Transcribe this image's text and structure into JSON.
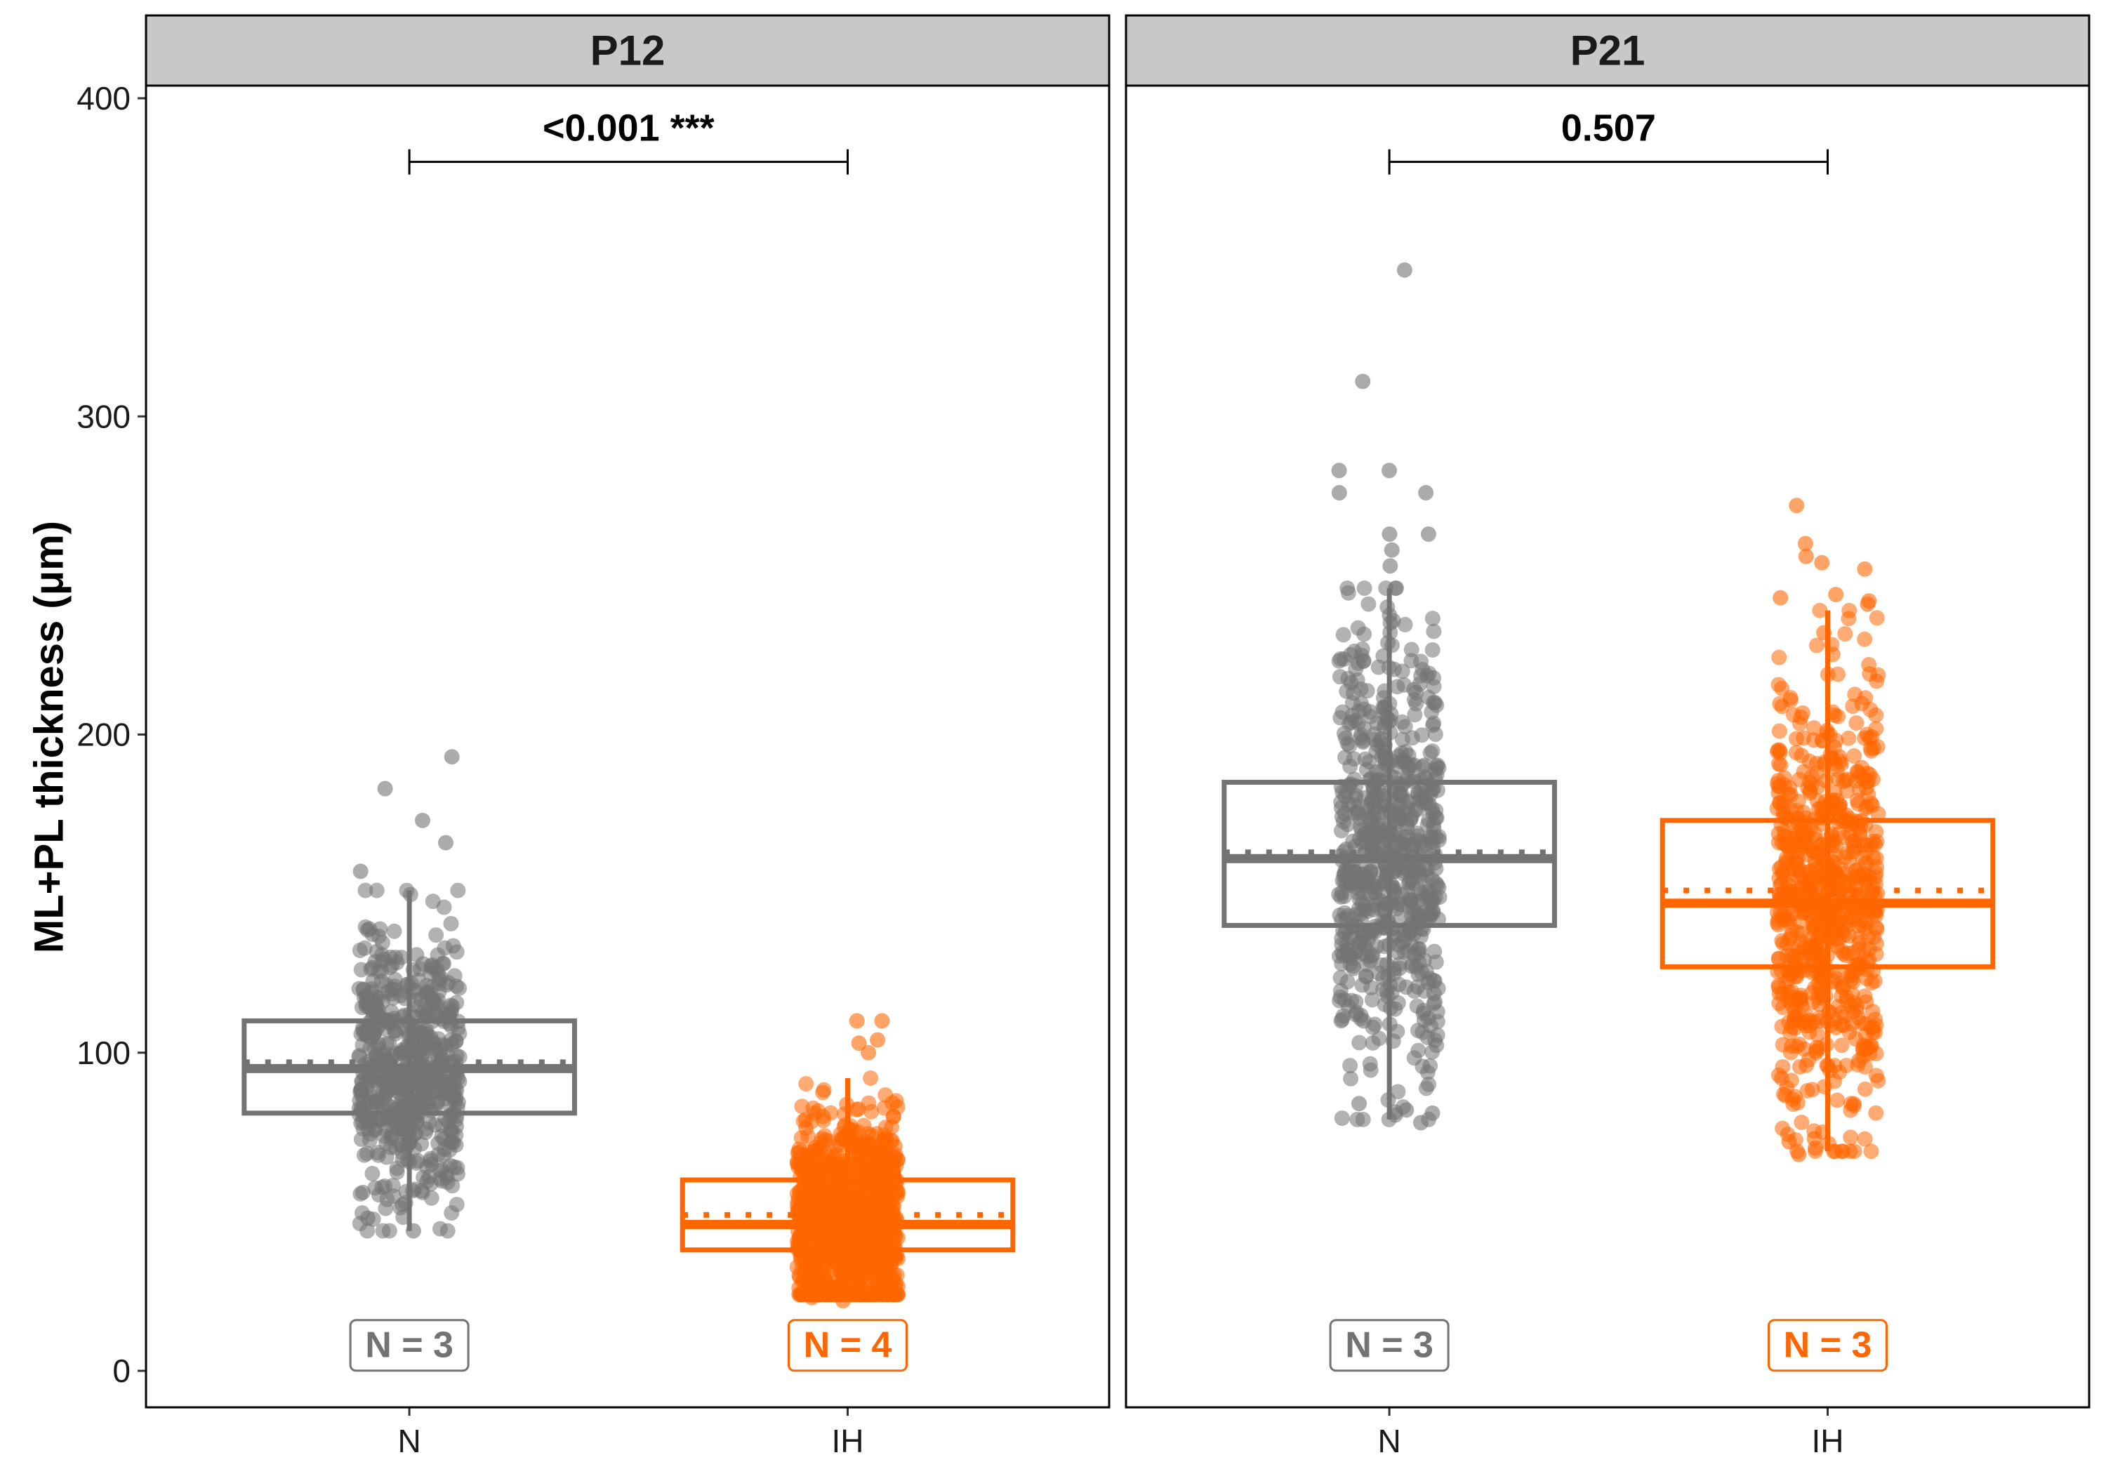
{
  "chart_data": {
    "type": "box",
    "ylabel": "ML+PL thickness (μm)",
    "ylim": [
      0,
      410
    ],
    "y_ticks": [
      0,
      100,
      200,
      300,
      400
    ],
    "categories": [
      "N",
      "IH"
    ],
    "colors": {
      "N": "#737373",
      "IH": "#ff6600"
    },
    "grid": false,
    "facets": [
      {
        "label": "P12",
        "comparison": "<0.001 ***",
        "groups": [
          {
            "category": "N",
            "min": 44,
            "q1": 81,
            "median": 95,
            "mean": 97,
            "q3": 110,
            "max": 151,
            "n_label": "N = 3",
            "points_range": [
              43,
              193
            ],
            "n_points": 600,
            "outliers": [
              173,
              183,
              193,
              166,
              157,
              48,
              44
            ]
          },
          {
            "category": "IH",
            "min": 24,
            "q1": 38,
            "median": 46,
            "mean": 49,
            "q3": 60,
            "max": 92,
            "n_label": "N = 4",
            "points_range": [
              22,
              110
            ],
            "n_points": 1100,
            "outliers": [
              110,
              110,
              104,
              103,
              100,
              23,
              22
            ]
          }
        ]
      },
      {
        "label": "P21",
        "comparison": "0.507",
        "groups": [
          {
            "category": "N",
            "min": 79,
            "q1": 140,
            "median": 161,
            "mean": 163,
            "q3": 185,
            "max": 246,
            "n_label": "N = 3",
            "points_range": [
              77,
              346
            ],
            "n_points": 700,
            "outliers": [
              346,
              311,
              283,
              283,
              276,
              276,
              263,
              263,
              258,
              253,
              84,
              82,
              81,
              78
            ]
          },
          {
            "category": "IH",
            "min": 69,
            "q1": 127,
            "median": 147,
            "mean": 151,
            "q3": 173,
            "max": 239,
            "n_label": "N = 3",
            "points_range": [
              68,
              272
            ],
            "n_points": 750,
            "outliers": [
              272,
              260,
              256,
              254,
              252,
              244,
              243,
              242,
              241,
              232,
              73,
              72,
              70,
              68
            ]
          }
        ]
      }
    ]
  }
}
